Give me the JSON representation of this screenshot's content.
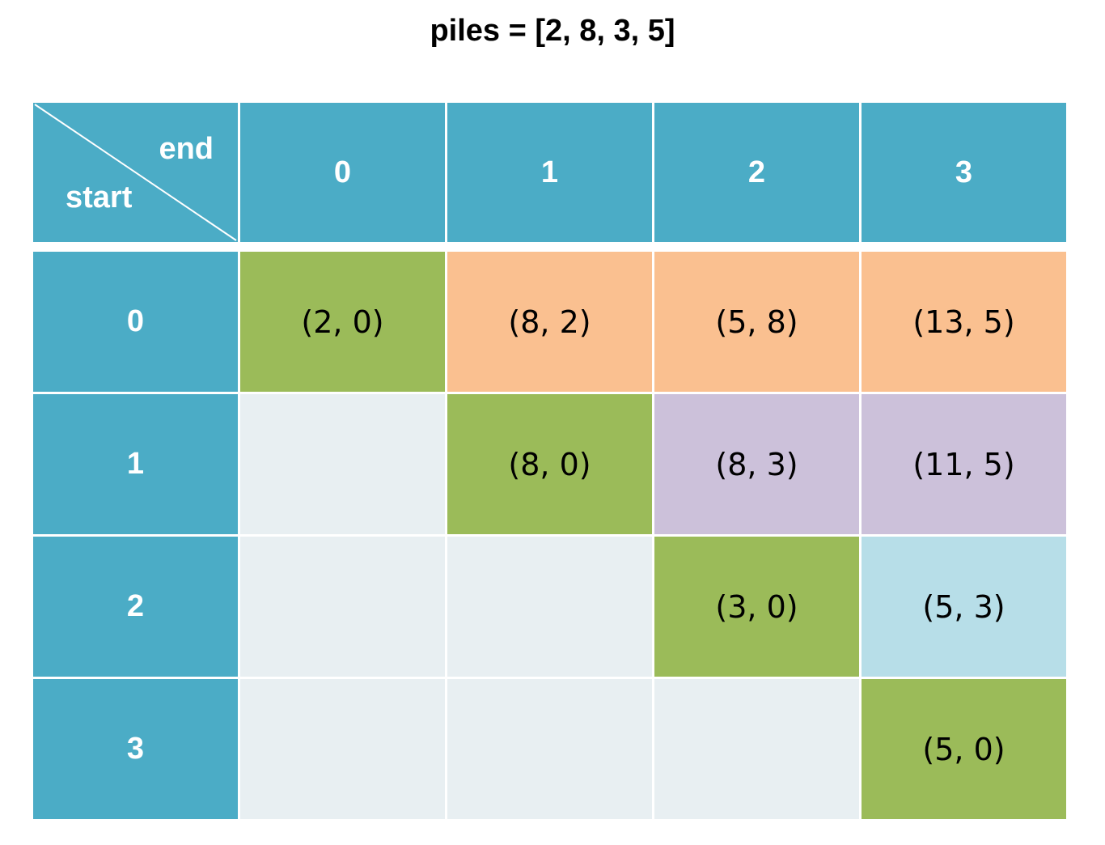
{
  "title": "piles = [2, 8, 3, 5]",
  "table": {
    "corner": {
      "end_label": "end",
      "start_label": "start"
    },
    "col_headers": [
      "0",
      "1",
      "2",
      "3"
    ],
    "row_headers": [
      "0",
      "1",
      "2",
      "3"
    ],
    "cells": [
      [
        "(2, 0)",
        "(8, 2)",
        "(5, 8)",
        "(13, 5)"
      ],
      [
        "",
        "(8, 0)",
        "(8, 3)",
        "(11, 5)"
      ],
      [
        "",
        "",
        "(3, 0)",
        "(5, 3)"
      ],
      [
        "",
        "",
        "",
        "(5, 0)"
      ]
    ]
  },
  "colors": {
    "header": "#4BACC6",
    "diagonal": "#9BBB59",
    "row0_fill": "#FAC090",
    "row1_fill": "#CCC1DA",
    "row2_fill": "#B7DEE8",
    "empty": "#E8EFF2"
  }
}
